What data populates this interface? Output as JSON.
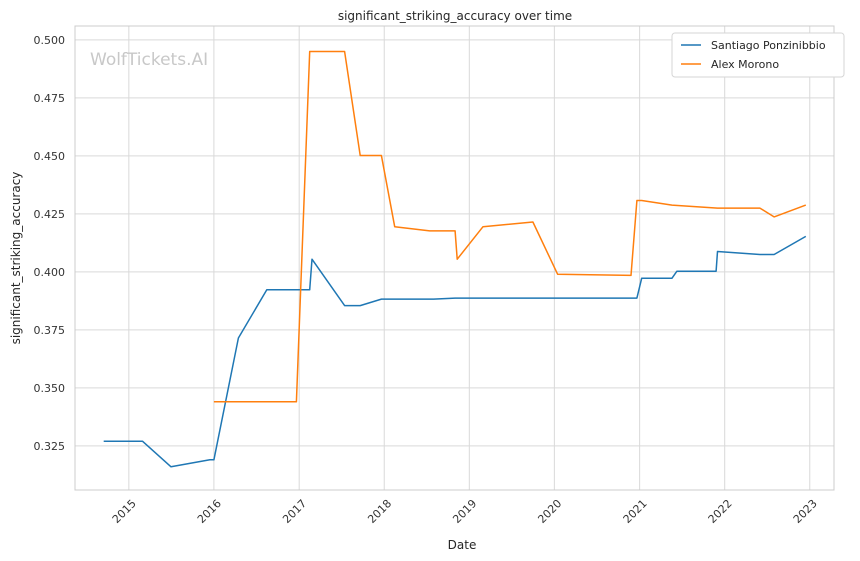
{
  "chart_data": {
    "type": "line",
    "title": "significant_striking_accuracy over time",
    "xlabel": "Date",
    "ylabel": "significant_striking_accuracy",
    "xlim": [
      "2014-05-15",
      "2023-04-15"
    ],
    "ylim": [
      0.306,
      0.506
    ],
    "x_ticks": [
      "2015",
      "2016",
      "2017",
      "2018",
      "2019",
      "2020",
      "2021",
      "2022",
      "2023"
    ],
    "y_ticks": [
      "0.325",
      "0.350",
      "0.375",
      "0.400",
      "0.425",
      "0.450",
      "0.475",
      "0.500"
    ],
    "grid": true,
    "legend_position": "top-right",
    "watermark": "WolfTickets.AI",
    "series": [
      {
        "name": "Santiago Ponzinibbio",
        "color": "#1f77b4",
        "points": [
          [
            "2014-09-15",
            0.327
          ],
          [
            "2015-03-01",
            0.327
          ],
          [
            "2015-07-01",
            0.316
          ],
          [
            "2015-12-15",
            0.319
          ],
          [
            "2016-01-01",
            0.319
          ],
          [
            "2016-04-15",
            0.3715
          ],
          [
            "2016-08-15",
            0.3923
          ],
          [
            "2017-02-15",
            0.3923
          ],
          [
            "2017-02-25",
            0.4055
          ],
          [
            "2017-07-15",
            0.3855
          ],
          [
            "2017-09-20",
            0.3855
          ],
          [
            "2017-12-20",
            0.3883
          ],
          [
            "2018-08-01",
            0.3883
          ],
          [
            "2018-11-01",
            0.3887
          ],
          [
            "2020-12-20",
            0.3887
          ],
          [
            "2021-01-10",
            0.3973
          ],
          [
            "2021-05-20",
            0.3973
          ],
          [
            "2021-06-10",
            0.4003
          ],
          [
            "2021-11-25",
            0.4003
          ],
          [
            "2021-12-01",
            0.4088
          ],
          [
            "2022-06-01",
            0.4075
          ],
          [
            "2022-08-01",
            0.4075
          ],
          [
            "2022-12-15",
            0.4153
          ]
        ]
      },
      {
        "name": "Alex Morono",
        "color": "#ff7f0e",
        "points": [
          [
            "2016-01-01",
            0.344
          ],
          [
            "2016-12-20",
            0.344
          ],
          [
            "2017-02-15",
            0.495
          ],
          [
            "2017-07-15",
            0.495
          ],
          [
            "2017-09-20",
            0.4502
          ],
          [
            "2017-12-20",
            0.4502
          ],
          [
            "2018-02-15",
            0.4195
          ],
          [
            "2018-07-15",
            0.4177
          ],
          [
            "2018-11-01",
            0.4177
          ],
          [
            "2018-11-10",
            0.4055
          ],
          [
            "2019-03-01",
            0.4195
          ],
          [
            "2019-10-01",
            0.4215
          ],
          [
            "2020-01-15",
            0.399
          ],
          [
            "2020-11-25",
            0.3985
          ],
          [
            "2020-12-20",
            0.4308
          ],
          [
            "2021-01-10",
            0.4308
          ],
          [
            "2021-05-20",
            0.4288
          ],
          [
            "2021-12-01",
            0.4275
          ],
          [
            "2022-06-01",
            0.4275
          ],
          [
            "2022-08-01",
            0.4237
          ],
          [
            "2022-12-15",
            0.4288
          ]
        ]
      }
    ]
  }
}
